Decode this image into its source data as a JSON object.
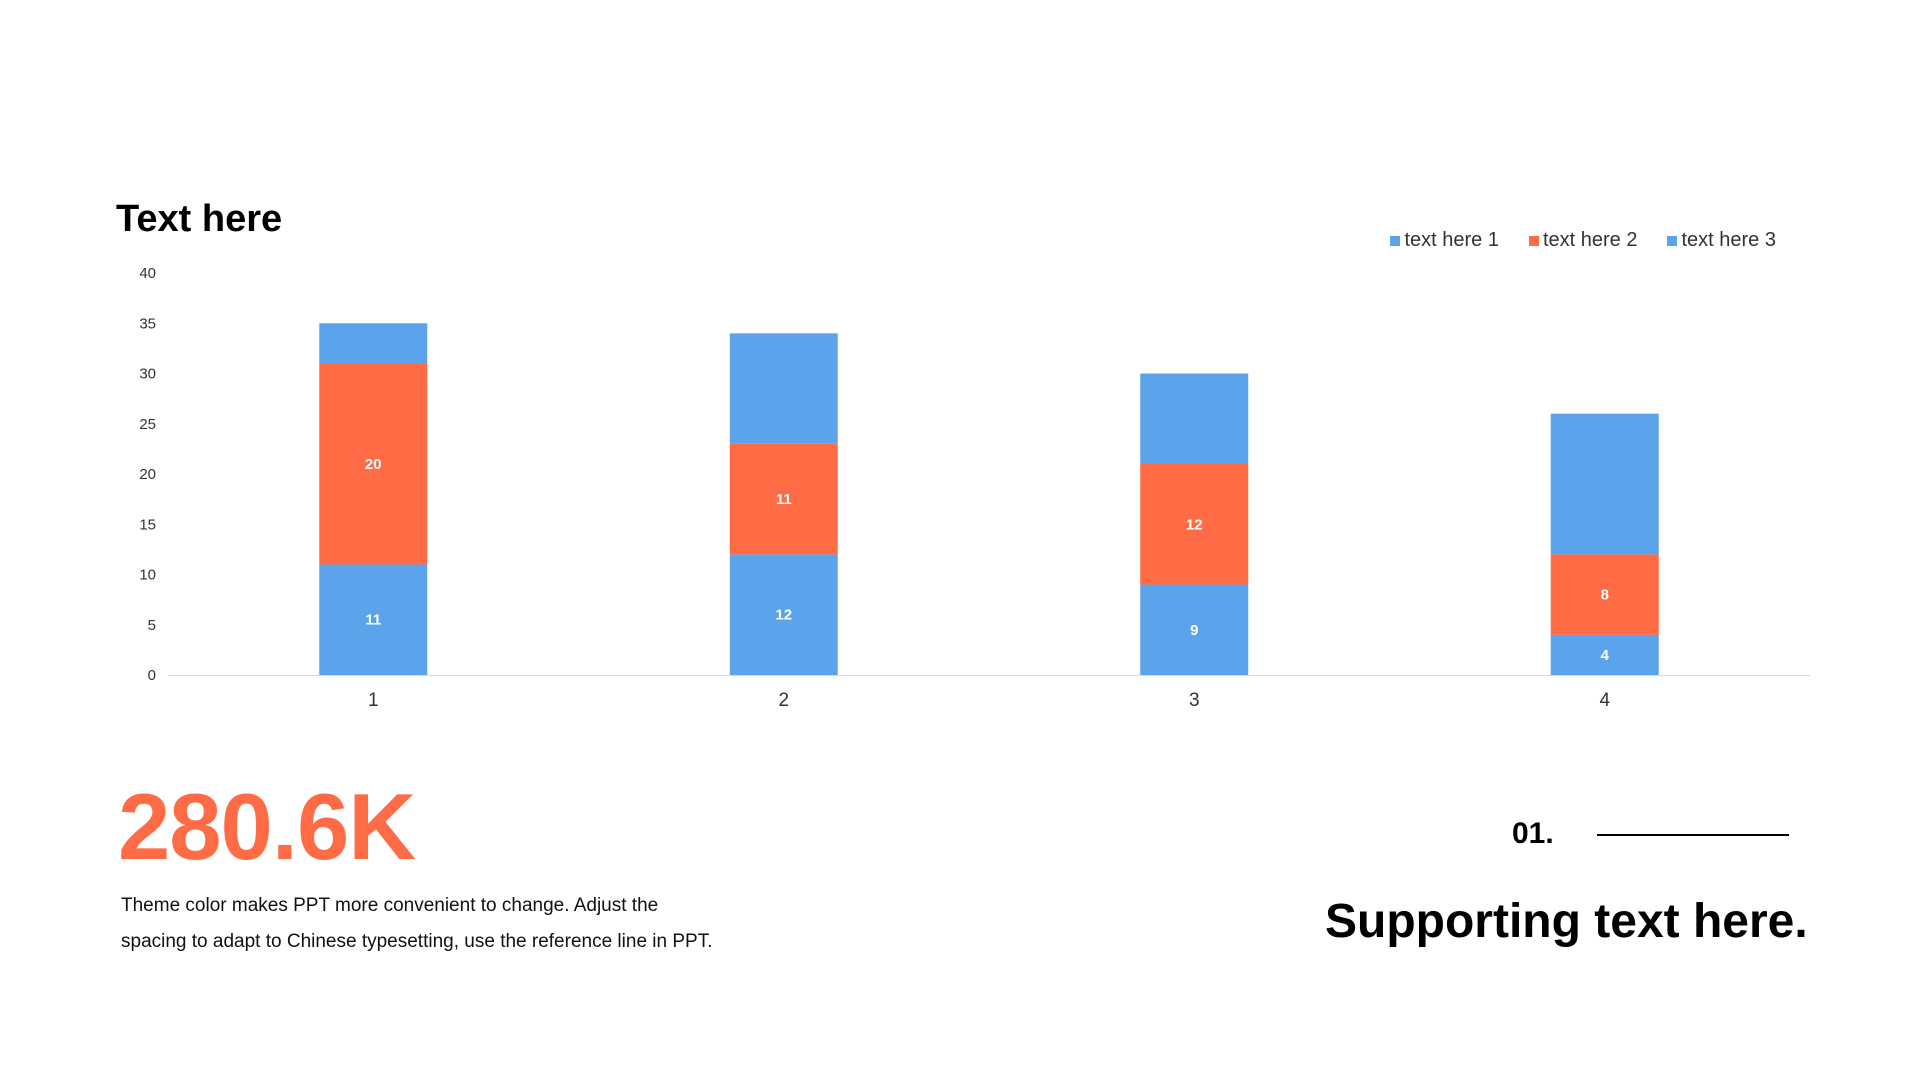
{
  "colors": {
    "blue": "#5ba3ea",
    "orange": "#ff6b45",
    "axis": "#d9d9d9",
    "tick_text": "#333333",
    "data_label": "#ffffff"
  },
  "chart_data": {
    "type": "bar",
    "stacked": true,
    "title": "Text here",
    "categories": [
      "1",
      "2",
      "3",
      "4"
    ],
    "series": [
      {
        "name": "text here 1",
        "color": "#5ba3ea",
        "values": [
          11,
          12,
          9,
          4
        ],
        "labels_shown": true
      },
      {
        "name": "text here 2",
        "color": "#ff6b45",
        "values": [
          20,
          11,
          12,
          8
        ],
        "labels_shown": true
      },
      {
        "name": "text here 3",
        "color": "#5ba3ea",
        "values": [
          4,
          11,
          9,
          14
        ],
        "labels_shown": false
      }
    ],
    "ylim": [
      0,
      40
    ],
    "yticks": [
      0,
      5,
      10,
      15,
      20,
      25,
      30,
      35,
      40
    ],
    "grid": false,
    "legend_position": "top-right",
    "xlabel": "",
    "ylabel": ""
  },
  "kpi": {
    "value": "280.6K",
    "description_line1": "Theme color makes PPT more convenient to change. Adjust the",
    "description_line2": "spacing to adapt to Chinese typesetting, use the reference line in PPT."
  },
  "footer": {
    "number": "01.",
    "supporting_text": "Supporting text here."
  }
}
